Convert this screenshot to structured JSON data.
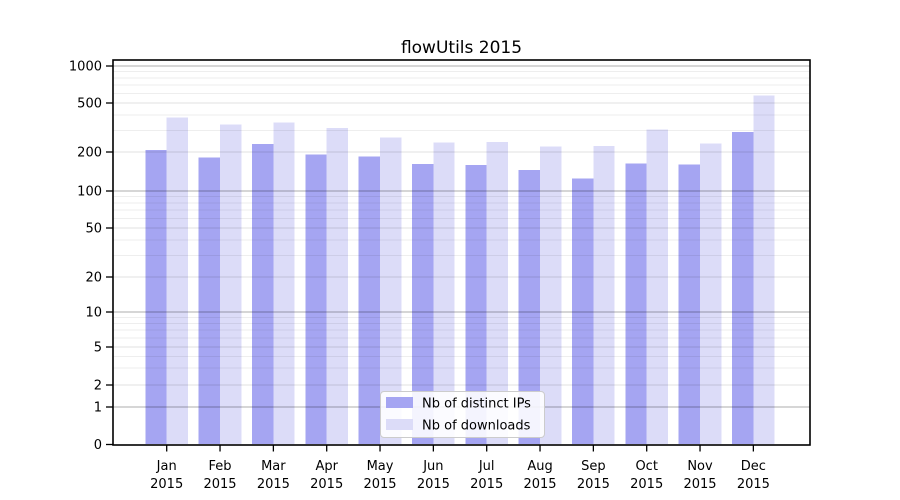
{
  "chart_data": {
    "type": "bar",
    "title": "flowUtils 2015",
    "year": "2015",
    "months": [
      "Jan",
      "Feb",
      "Mar",
      "Apr",
      "May",
      "Jun",
      "Jul",
      "Aug",
      "Sep",
      "Oct",
      "Nov",
      "Dec"
    ],
    "categories": [
      "Jan 2015",
      "Feb 2015",
      "Mar 2015",
      "Apr 2015",
      "May 2015",
      "Jun 2015",
      "Jul 2015",
      "Aug 2015",
      "Sep 2015",
      "Oct 2015",
      "Nov 2015",
      "Dec 2015"
    ],
    "series": [
      {
        "name": "Nb of distinct IPs",
        "color": "#a5a5f2",
        "values": [
          208,
          182,
          232,
          191,
          185,
          161,
          159,
          145,
          125,
          163,
          160,
          292
        ]
      },
      {
        "name": "Nb of downloads",
        "color": "#dcdcf8",
        "values": [
          380,
          333,
          348,
          312,
          263,
          240,
          242,
          221,
          224,
          306,
          235,
          575
        ]
      }
    ],
    "xlabel": "",
    "ylabel": "",
    "yscale": "symlog",
    "yticks": [
      0,
      1,
      2,
      5,
      10,
      20,
      50,
      100,
      200,
      500,
      1000
    ],
    "ylim": [
      0,
      1120
    ],
    "grid": true,
    "legend": {
      "position": "lower center",
      "frame_color": "#cccccc",
      "background": "#ffffff"
    },
    "colors": {
      "axis": "#000000",
      "major_grid": "#b3b3b3",
      "mid_grid": "#e0e0e0",
      "minor_grid": "#efefef",
      "background": "#ffffff"
    }
  }
}
